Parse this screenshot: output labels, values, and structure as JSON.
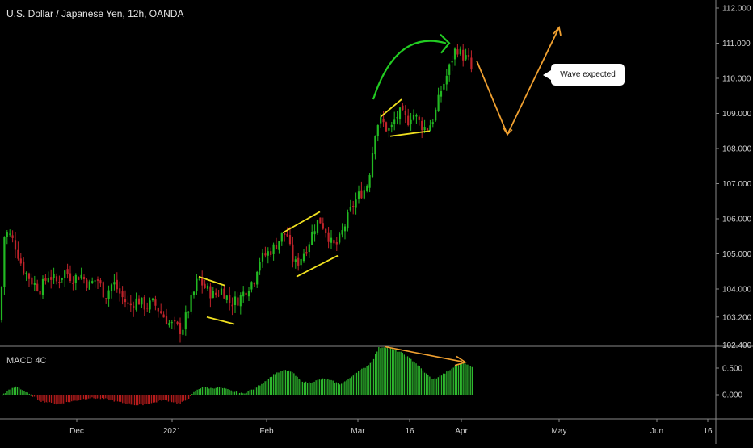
{
  "title": "U.S. Dollar / Japanese Yen, 12h, OANDA",
  "macd_title": "MACD 4C",
  "annotation": "Wave expected",
  "colors": {
    "up": "#22b922",
    "down": "#c0232a",
    "macd_pos": "#2eb82e",
    "macd_neg": "#b71c1c",
    "yellow": "#f0e020",
    "orange": "#f0a030",
    "green_arrow": "#22cc22",
    "grid": "#888888"
  },
  "chart_data": [
    {
      "type": "candlestick",
      "title": "U.S. Dollar / Japanese Yen, 12h, OANDA",
      "price_axis": {
        "ticks": [
          "112.000",
          "111.000",
          "110.000",
          "109.000",
          "108.000",
          "107.000",
          "106.000",
          "105.000",
          "104.000",
          "103.200",
          "102.400"
        ],
        "tick_values": [
          112.0,
          111.0,
          110.0,
          109.0,
          108.0,
          107.0,
          106.0,
          105.0,
          104.0,
          103.2,
          102.4
        ],
        "ylim": [
          102.0,
          112.2
        ]
      },
      "time_axis": {
        "ticks": [
          "Dec",
          "2021",
          "Feb",
          "Mar",
          "16",
          "Apr",
          "May",
          "Jun",
          "16"
        ]
      },
      "close_path": [
        [
          0,
          103.1
        ],
        [
          5,
          105.5
        ],
        [
          10,
          105.6
        ],
        [
          18,
          105.3
        ],
        [
          28,
          104.6
        ],
        [
          40,
          104.2
        ],
        [
          50,
          104.0
        ],
        [
          60,
          104.4
        ],
        [
          70,
          104.2
        ],
        [
          80,
          104.5
        ],
        [
          90,
          104.3
        ],
        [
          100,
          104.4
        ],
        [
          110,
          104.1
        ],
        [
          120,
          104.3
        ],
        [
          130,
          103.8
        ],
        [
          140,
          104.2
        ],
        [
          150,
          103.8
        ],
        [
          160,
          103.5
        ],
        [
          170,
          103.7
        ],
        [
          180,
          103.5
        ],
        [
          190,
          103.6
        ],
        [
          200,
          103.3
        ],
        [
          210,
          103.0
        ],
        [
          220,
          102.9
        ],
        [
          225,
          102.8
        ],
        [
          230,
          103.2
        ],
        [
          240,
          103.9
        ],
        [
          245,
          104.3
        ],
        [
          255,
          104.0
        ],
        [
          265,
          103.8
        ],
        [
          275,
          104.0
        ],
        [
          285,
          103.6
        ],
        [
          295,
          103.7
        ],
        [
          305,
          104.0
        ],
        [
          315,
          104.3
        ],
        [
          320,
          104.8
        ],
        [
          330,
          105.0
        ],
        [
          340,
          105.2
        ],
        [
          348,
          105.5
        ],
        [
          355,
          105.6
        ],
        [
          360,
          105.0
        ],
        [
          365,
          104.7
        ],
        [
          370,
          104.8
        ],
        [
          380,
          105.2
        ],
        [
          385,
          105.5
        ],
        [
          390,
          105.8
        ],
        [
          395,
          106.0
        ],
        [
          400,
          105.8
        ],
        [
          405,
          105.6
        ],
        [
          410,
          105.3
        ],
        [
          415,
          105.2
        ],
        [
          420,
          105.4
        ],
        [
          425,
          105.7
        ],
        [
          430,
          106.0
        ],
        [
          435,
          106.3
        ],
        [
          440,
          106.5
        ],
        [
          445,
          106.7
        ],
        [
          450,
          106.8
        ],
        [
          455,
          107.0
        ],
        [
          460,
          107.7
        ],
        [
          463,
          108.4
        ],
        [
          467,
          108.7
        ],
        [
          470,
          108.8
        ],
        [
          475,
          108.7
        ],
        [
          480,
          108.5
        ],
        [
          485,
          108.6
        ],
        [
          490,
          108.9
        ],
        [
          495,
          109.0
        ],
        [
          500,
          108.9
        ],
        [
          505,
          108.8
        ],
        [
          510,
          109.0
        ],
        [
          515,
          108.9
        ],
        [
          520,
          108.7
        ],
        [
          525,
          108.6
        ],
        [
          530,
          108.6
        ],
        [
          535,
          108.8
        ],
        [
          540,
          109.1
        ],
        [
          545,
          109.6
        ],
        [
          550,
          109.9
        ],
        [
          555,
          110.2
        ],
        [
          560,
          110.6
        ],
        [
          565,
          110.9
        ],
        [
          570,
          110.7
        ],
        [
          575,
          110.6
        ],
        [
          580,
          110.5
        ],
        [
          585,
          110.1
        ]
      ],
      "projection": [
        [
          590,
          110.5
        ],
        [
          628,
          108.4
        ],
        [
          692,
          111.45
        ]
      ]
    },
    {
      "type": "histogram",
      "title": "MACD 4C",
      "value_axis": {
        "ticks": [
          "0.500",
          "0.000"
        ],
        "tick_values": [
          0.5,
          0.0
        ],
        "ylim": [
          -0.45,
          0.9
        ]
      },
      "profile": [
        [
          0,
          -0.02
        ],
        [
          10,
          0.08
        ],
        [
          20,
          0.16
        ],
        [
          30,
          0.06
        ],
        [
          40,
          -0.03
        ],
        [
          50,
          -0.12
        ],
        [
          70,
          -0.18
        ],
        [
          90,
          -0.12
        ],
        [
          110,
          -0.06
        ],
        [
          130,
          -0.08
        ],
        [
          150,
          -0.15
        ],
        [
          170,
          -0.2
        ],
        [
          190,
          -0.15
        ],
        [
          200,
          -0.1
        ],
        [
          210,
          -0.12
        ],
        [
          222,
          -0.17
        ],
        [
          232,
          -0.08
        ],
        [
          240,
          0.05
        ],
        [
          250,
          0.15
        ],
        [
          260,
          0.12
        ],
        [
          270,
          0.14
        ],
        [
          280,
          0.1
        ],
        [
          290,
          0.05
        ],
        [
          300,
          0.02
        ],
        [
          315,
          0.12
        ],
        [
          330,
          0.28
        ],
        [
          340,
          0.4
        ],
        [
          350,
          0.46
        ],
        [
          360,
          0.44
        ],
        [
          370,
          0.28
        ],
        [
          380,
          0.22
        ],
        [
          390,
          0.26
        ],
        [
          400,
          0.3
        ],
        [
          410,
          0.26
        ],
        [
          420,
          0.2
        ],
        [
          430,
          0.28
        ],
        [
          440,
          0.42
        ],
        [
          450,
          0.5
        ],
        [
          460,
          0.62
        ],
        [
          468,
          0.88
        ],
        [
          475,
          0.9
        ],
        [
          485,
          0.85
        ],
        [
          495,
          0.8
        ],
        [
          505,
          0.7
        ],
        [
          515,
          0.58
        ],
        [
          525,
          0.42
        ],
        [
          535,
          0.28
        ],
        [
          545,
          0.36
        ],
        [
          555,
          0.45
        ],
        [
          565,
          0.56
        ],
        [
          575,
          0.6
        ],
        [
          585,
          0.5
        ]
      ]
    }
  ]
}
